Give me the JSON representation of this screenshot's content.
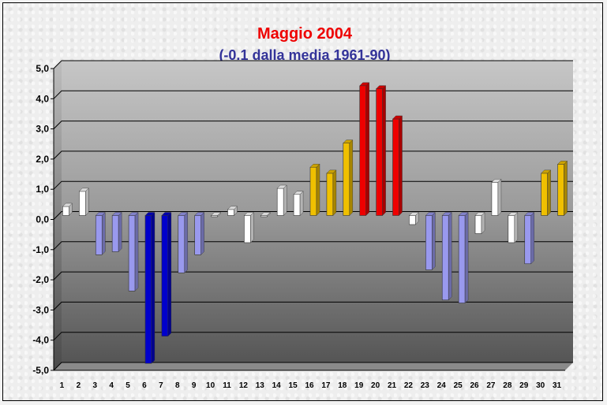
{
  "chart_data": {
    "type": "bar",
    "title": "Maggio 2004",
    "subtitle": "(-0.1 dalla media 1961-90)",
    "xlabel": "",
    "ylabel": "",
    "ylim": [
      -5,
      5
    ],
    "y_ticks": [
      "5,0",
      "4,0",
      "3,0",
      "2,0",
      "1,0",
      "0,0",
      "-1,0",
      "-2,0",
      "-3,0",
      "-4,0",
      "-5,0"
    ],
    "categories": [
      "1",
      "2",
      "3",
      "4",
      "5",
      "6",
      "7",
      "8",
      "9",
      "10",
      "11",
      "12",
      "13",
      "14",
      "15",
      "16",
      "17",
      "18",
      "19",
      "20",
      "21",
      "22",
      "23",
      "24",
      "25",
      "26",
      "27",
      "28",
      "29",
      "30",
      "31"
    ],
    "values": [
      0.3,
      0.8,
      -1.3,
      -1.2,
      -2.5,
      -4.9,
      -4.0,
      -1.9,
      -1.3,
      0.0,
      0.2,
      -0.9,
      0.0,
      0.9,
      0.7,
      1.6,
      1.4,
      2.4,
      4.3,
      4.2,
      3.2,
      -0.3,
      -1.8,
      -2.8,
      -2.9,
      -0.6,
      1.1,
      -0.9,
      -1.6,
      1.4,
      1.7
    ],
    "grid": true,
    "legend": "none",
    "colors": {
      "title": "#ee0000",
      "subtitle": "#333399",
      "white_bar": "#ffffff",
      "light_blue_bar": "#9999ee",
      "blue_bar": "#0000cc",
      "yellow_bar": "#f0c000",
      "red_bar": "#ee0000"
    }
  }
}
